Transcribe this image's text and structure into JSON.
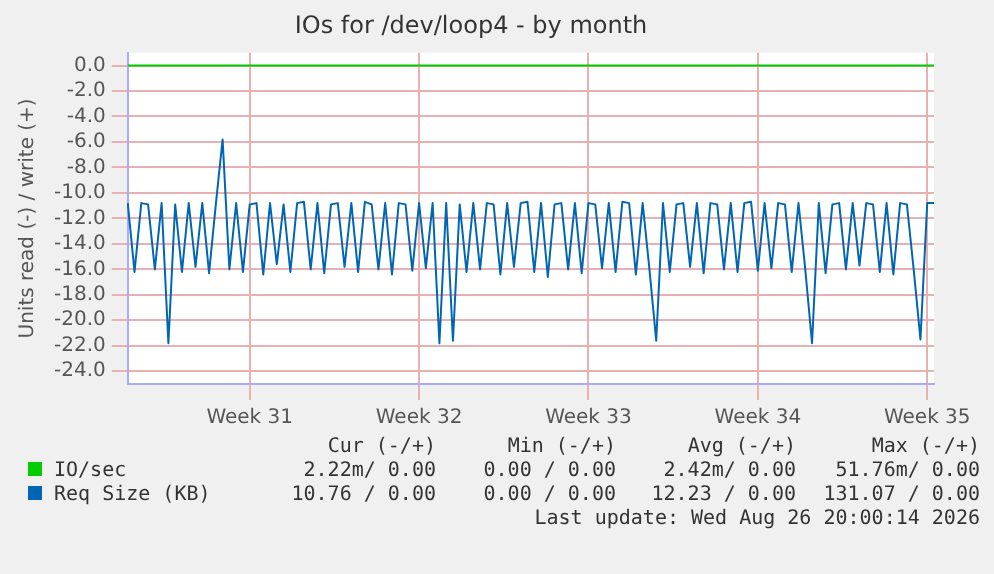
{
  "chart_data": {
    "type": "line",
    "title": "IOs for /dev/loop4 - by month",
    "ylabel": "Units read (-) / write (+)",
    "categories": [
      null,
      null,
      null,
      null,
      null,
      null,
      null,
      null,
      null,
      null,
      null,
      null,
      null,
      null,
      null,
      null,
      null,
      null,
      "Week 31",
      null,
      null,
      null,
      null,
      null,
      null,
      null,
      null,
      null,
      null,
      null,
      null,
      null,
      null,
      null,
      null,
      null,
      null,
      null,
      null,
      null,
      null,
      null,
      null,
      "Week 32",
      null,
      null,
      null,
      null,
      null,
      null,
      null,
      null,
      null,
      null,
      null,
      null,
      null,
      null,
      null,
      null,
      null,
      null,
      null,
      null,
      null,
      null,
      null,
      null,
      "Week 33",
      null,
      null,
      null,
      null,
      null,
      null,
      null,
      null,
      null,
      null,
      null,
      null,
      null,
      null,
      null,
      null,
      null,
      null,
      null,
      null,
      null,
      null,
      null,
      null,
      "Week 34",
      null,
      null,
      null,
      null,
      null,
      null,
      null,
      null,
      null,
      null,
      null,
      null,
      null,
      null,
      null,
      null,
      null,
      null,
      null,
      null,
      null,
      null,
      null,
      null,
      "Week 35",
      null
    ],
    "ylim": [
      -25,
      1
    ],
    "yticks": [
      {
        "value": 0,
        "label": "0.0"
      },
      {
        "value": -2,
        "label": "-2.0"
      },
      {
        "value": -4,
        "label": "-4.0"
      },
      {
        "value": -6,
        "label": "-6.0"
      },
      {
        "value": -8,
        "label": "-8.0"
      },
      {
        "value": -10,
        "label": "-10.0"
      },
      {
        "value": -12,
        "label": "-12.0"
      },
      {
        "value": -14,
        "label": "-14.0"
      },
      {
        "value": -16,
        "label": "-16.0"
      },
      {
        "value": -18,
        "label": "-18.0"
      },
      {
        "value": -20,
        "label": "-20.0"
      },
      {
        "value": -22,
        "label": "-22.0"
      },
      {
        "value": -24,
        "label": "-24.0"
      }
    ],
    "grid": true,
    "legend": "bottom",
    "marker": "none",
    "line_style": "solid",
    "series": [
      {
        "name": "IO/sec",
        "color": "#00cc00",
        "values": [
          0,
          0,
          0,
          0,
          0,
          0,
          0,
          0,
          0,
          0,
          0,
          0,
          0,
          0,
          0,
          0,
          0,
          0,
          0,
          0,
          0,
          0,
          0,
          0,
          0,
          0,
          0,
          0,
          0,
          0,
          0,
          0,
          0,
          0,
          0,
          0,
          0,
          0,
          0,
          0,
          0,
          0,
          0,
          0,
          0,
          0,
          0,
          0,
          0,
          0,
          0,
          0,
          0,
          0,
          0,
          0,
          0,
          0,
          0,
          0,
          0,
          0,
          0,
          0,
          0,
          0,
          0,
          0,
          0,
          0,
          0,
          0,
          0,
          0,
          0,
          0,
          0,
          0,
          0,
          0,
          0,
          0,
          0,
          0,
          0,
          0,
          0,
          0,
          0,
          0,
          0,
          0,
          0,
          0,
          0,
          0,
          0,
          0,
          0,
          0,
          0,
          0,
          0,
          0,
          0,
          0,
          0,
          0,
          0,
          0,
          0,
          0,
          0,
          0,
          0,
          0,
          0,
          0,
          0,
          0
        ]
      },
      {
        "name": "Req Size (KB)",
        "color": "#0066b3",
        "values": [
          -10.8,
          -16.2,
          -10.8,
          -10.9,
          -16.0,
          -10.8,
          -21.8,
          -10.9,
          -16.2,
          -10.8,
          -15.8,
          -10.8,
          -16.3,
          -10.9,
          -5.8,
          -16.0,
          -10.8,
          -16.2,
          -10.9,
          -10.8,
          -16.4,
          -10.8,
          -15.6,
          -10.9,
          -16.2,
          -10.8,
          -10.7,
          -16.0,
          -10.8,
          -16.3,
          -10.9,
          -10.8,
          -15.8,
          -10.8,
          -16.2,
          -10.7,
          -10.9,
          -16.0,
          -10.8,
          -16.4,
          -10.8,
          -10.9,
          -16.1,
          -10.8,
          -15.9,
          -10.8,
          -21.8,
          -10.8,
          -21.6,
          -10.9,
          -16.2,
          -10.8,
          -16.0,
          -10.8,
          -10.9,
          -16.4,
          -10.8,
          -15.8,
          -10.8,
          -10.7,
          -16.2,
          -10.8,
          -16.6,
          -10.9,
          -10.8,
          -16.0,
          -10.8,
          -16.3,
          -10.8,
          -10.9,
          -15.9,
          -10.8,
          -16.2,
          -10.7,
          -10.8,
          -16.4,
          -10.8,
          -16.0,
          -21.6,
          -10.8,
          -16.2,
          -10.9,
          -10.8,
          -15.8,
          -10.8,
          -16.3,
          -10.8,
          -10.9,
          -16.0,
          -10.8,
          -16.2,
          -10.8,
          -10.7,
          -16.1,
          -10.8,
          -15.9,
          -10.8,
          -10.9,
          -16.2,
          -10.8,
          -16.0,
          -21.8,
          -10.8,
          -16.3,
          -10.9,
          -10.8,
          -16.0,
          -10.8,
          -15.7,
          -10.8,
          -10.9,
          -16.2,
          -10.8,
          -16.4,
          -10.8,
          -10.9,
          -16.0,
          -21.5,
          -10.8,
          -10.8
        ]
      }
    ],
    "annotations": [
      "Cur (-/+)",
      "Min (-/+)",
      "Avg (-/+)",
      "Max (-/+)",
      "2.22m/ 0.00",
      "0.00 / 0.00",
      "2.42m/ 0.00",
      "51.76m/ 0.00",
      "10.76 / 0.00",
      "0.00 / 0.00",
      "12.23 / 0.00",
      "131.07 / 0.00",
      "Last update: Wed Aug 26 20:00:14 2026"
    ]
  }
}
